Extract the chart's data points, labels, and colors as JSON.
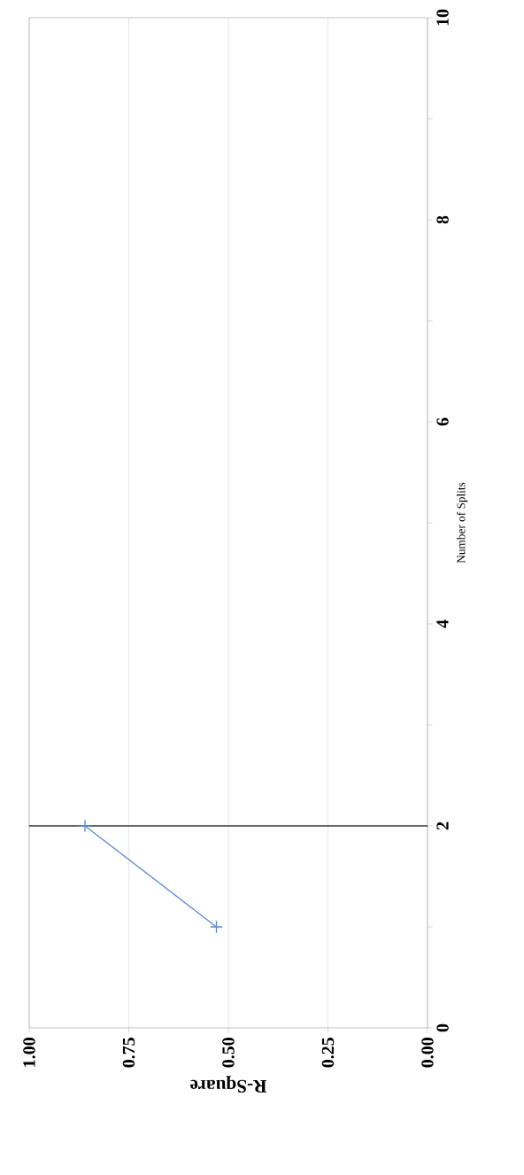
{
  "chart_data": {
    "type": "line",
    "xlabel": "R-Square",
    "ylabel": "Number of Splits",
    "x": [
      0.53,
      0.86
    ],
    "values": [
      1,
      2
    ],
    "color": "#5a8ad0",
    "marker": "cross",
    "xlim": [
      1,
      0
    ],
    "xticks": [
      {
        "value": 0,
        "label": "0.00"
      },
      {
        "value": 0.25,
        "label": "0.25"
      },
      {
        "value": 0.5,
        "label": "0.50"
      },
      {
        "value": 0.75,
        "label": "0.75"
      },
      {
        "value": 1,
        "label": "1.00"
      }
    ],
    "ylim": [
      0,
      10
    ],
    "yticks": [
      0,
      {
        "value": 1,
        "label": null
      },
      2,
      {
        "value": 3,
        "label": null
      },
      4,
      {
        "value": 5,
        "label": null
      },
      6,
      {
        "value": 7,
        "label": null
      },
      8,
      {
        "value": 9,
        "label": null
      },
      10
    ],
    "grid": "x",
    "ref_lines": [
      {
        "axis": "y",
        "value": 2,
        "color": "#333333"
      }
    ]
  }
}
